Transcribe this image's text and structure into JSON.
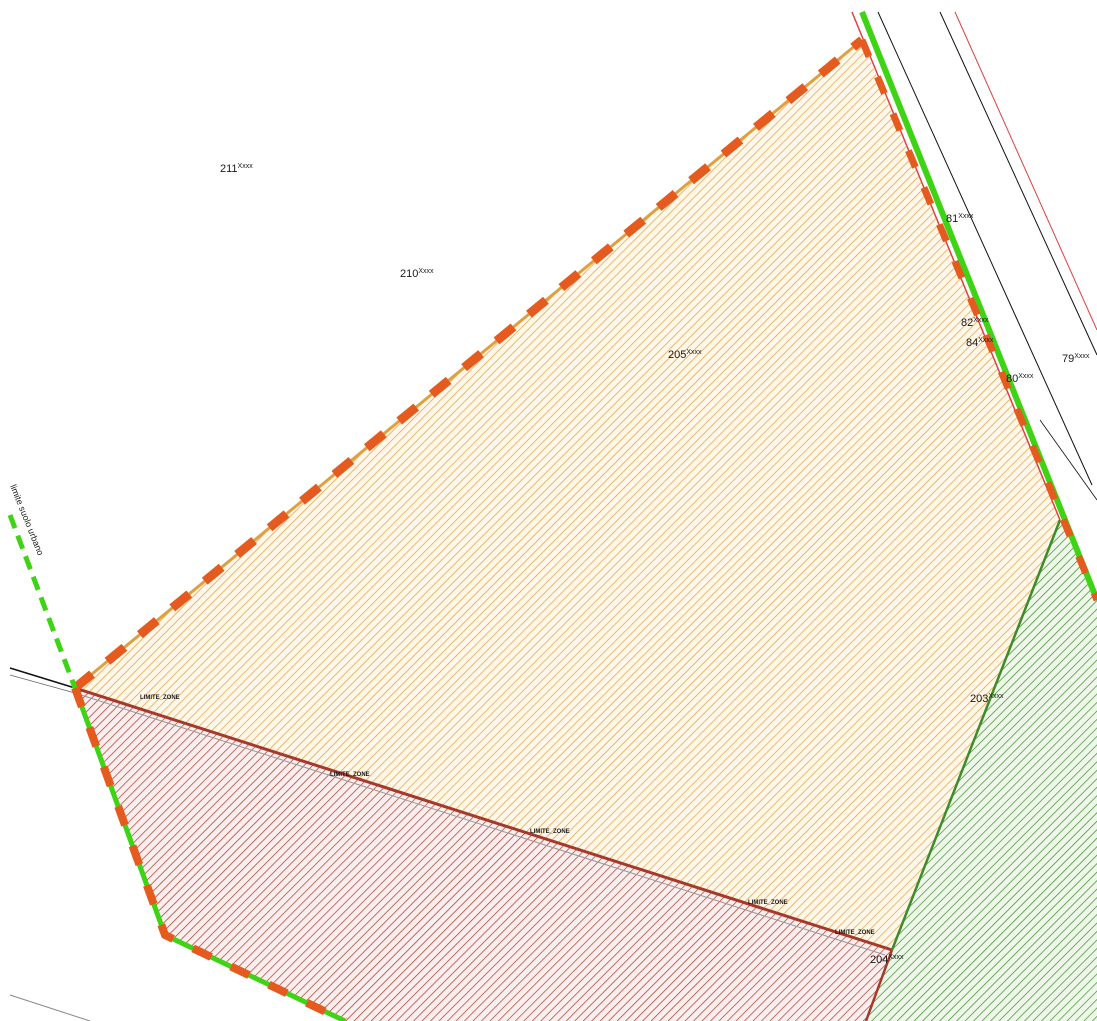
{
  "map": {
    "colors": {
      "orange_zone": "#e0a040",
      "red_zone": "#a63a2a",
      "green_zone": "#3e8c2a",
      "boundary_green": "#3ed314",
      "boundary_orange": "#e55a1e",
      "road_red": "#e04040"
    },
    "parcels": [
      {
        "id": "parcel-211",
        "num": "211",
        "sup": "Xxxx"
      },
      {
        "id": "parcel-210",
        "num": "210",
        "sup": "Xxxx"
      },
      {
        "id": "parcel-205",
        "num": "205",
        "sup": "Xxxx"
      },
      {
        "id": "parcel-81",
        "num": "81",
        "sup": "Xxxx"
      },
      {
        "id": "parcel-82",
        "num": "82",
        "sup": "Xxxx"
      },
      {
        "id": "parcel-84",
        "num": "84",
        "sup": "Xxxx"
      },
      {
        "id": "parcel-80",
        "num": "80",
        "sup": "Xxxx"
      },
      {
        "id": "parcel-79",
        "num": "79",
        "sup": "Xxxx"
      },
      {
        "id": "parcel-203",
        "num": "203",
        "sup": "Xxxx"
      },
      {
        "id": "parcel-204",
        "num": "204",
        "sup": "Xxxx"
      }
    ],
    "boundary_label": "limite suolo urbano",
    "line_labels": [
      "LIMITE_ZONE",
      "LIMITE_ZONE",
      "LIMITE_ZONE",
      "LIMITE_ZONE",
      "LIMITE_ZONE"
    ]
  }
}
